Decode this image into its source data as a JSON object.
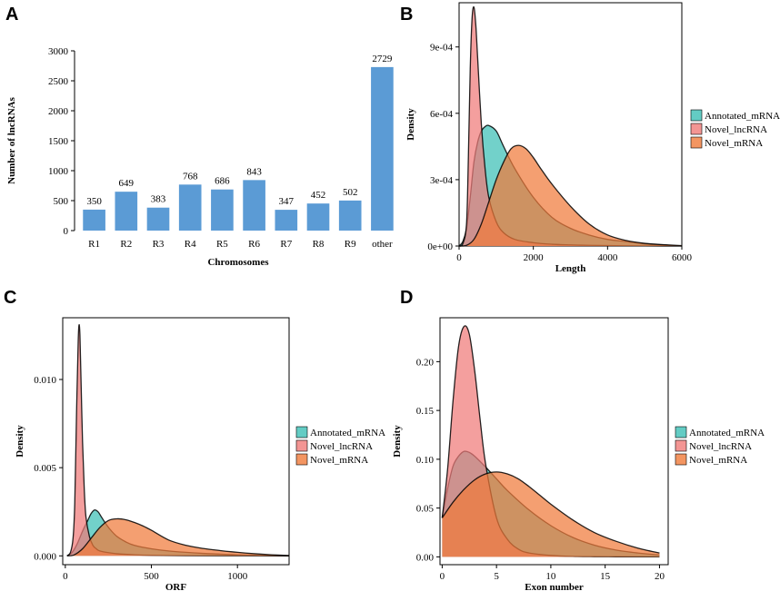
{
  "colors": {
    "bar": "#5b9bd5",
    "annotated": "#3cbfb5",
    "lnc": "#f07a78",
    "novel": "#f07a3a"
  },
  "chart_data": [
    {
      "panel": "A",
      "type": "bar",
      "xlabel": "Chromosomes",
      "ylabel": "Number of lncRNAs",
      "ylim": [
        0,
        3000
      ],
      "yticks": [
        0,
        500,
        1000,
        1500,
        2000,
        2500,
        3000
      ],
      "categories": [
        "R1",
        "R2",
        "R3",
        "R4",
        "R5",
        "R6",
        "R7",
        "R8",
        "R9",
        "other"
      ],
      "values": [
        350,
        649,
        383,
        768,
        686,
        843,
        347,
        452,
        502,
        2729
      ]
    },
    {
      "panel": "B",
      "type": "area",
      "xlabel": "Length",
      "ylabel": "Density",
      "xlim": [
        0,
        6000
      ],
      "ylim": [
        0,
        0.0011
      ],
      "xticks": [
        0,
        2000,
        4000,
        6000
      ],
      "xtick_labels": [
        "0",
        "2000",
        "4000",
        "6000"
      ],
      "yticks": [
        0,
        0.0003,
        0.0006,
        0.0009
      ],
      "ytick_labels": [
        "0e+00",
        "3e-04",
        "6e-04",
        "9e-04"
      ],
      "legend": [
        "Annotated_mRNA",
        "Novel_lncRNA",
        "Novel_mRNA"
      ],
      "series": [
        {
          "name": "Annotated_mRNA",
          "x": [
            0,
            100,
            200,
            300,
            400,
            500,
            600,
            700,
            800,
            1000,
            1200,
            1500,
            2000,
            2500,
            3000,
            3500,
            4000,
            4500,
            5000,
            5500,
            6000
          ],
          "y": [
            0,
            2e-05,
            8e-05,
            0.00022,
            0.00038,
            0.00047,
            0.00052,
            0.00054,
            0.000545,
            0.00052,
            0.00045,
            0.00035,
            0.00022,
            0.00013,
            8e-05,
            5e-05,
            3e-05,
            2e-05,
            1e-05,
            5e-06,
            0
          ]
        },
        {
          "name": "Novel_lncRNA",
          "x": [
            0,
            100,
            200,
            250,
            300,
            350,
            400,
            450,
            500,
            600,
            700,
            800,
            1000,
            1200,
            1500,
            2000,
            2500,
            3000,
            3500,
            4000,
            4500,
            5000,
            6000
          ],
          "y": [
            0,
            1e-05,
            0.0001,
            0.0004,
            0.0008,
            0.00103,
            0.00108,
            0.001,
            0.00085,
            0.00055,
            0.00035,
            0.00022,
            0.00011,
            6e-05,
            3e-05,
            1.5e-05,
            8e-06,
            5e-06,
            3e-06,
            2e-06,
            1e-06,
            5e-07,
            0
          ]
        },
        {
          "name": "Novel_mRNA",
          "x": [
            0,
            200,
            400,
            600,
            800,
            1000,
            1200,
            1400,
            1600,
            1800,
            2000,
            2200,
            2500,
            3000,
            3500,
            4000,
            4500,
            5000,
            5500,
            6000
          ],
          "y": [
            0,
            3e-06,
            3e-05,
            0.0001,
            0.0002,
            0.0003,
            0.00038,
            0.00044,
            0.000455,
            0.00044,
            0.0004,
            0.00035,
            0.00028,
            0.00018,
            0.0001,
            5e-05,
            2.5e-05,
            1.2e-05,
            6e-06,
            2e-06
          ]
        }
      ]
    },
    {
      "panel": "C",
      "type": "area",
      "xlabel": "ORF",
      "ylabel": "Density",
      "xlim": [
        -15,
        1300
      ],
      "ylim": [
        -0.0005,
        0.0135
      ],
      "xticks": [
        0,
        500,
        1000
      ],
      "xtick_labels": [
        "0",
        "500",
        "1000"
      ],
      "yticks": [
        0,
        0.005,
        0.01
      ],
      "ytick_labels": [
        "0.000",
        "0.005",
        "0.010"
      ],
      "legend": [
        "Annotated_mRNA",
        "Novel_lncRNA",
        "Novel_mRNA"
      ],
      "series": [
        {
          "name": "Annotated_mRNA",
          "x": [
            10,
            40,
            70,
            100,
            130,
            150,
            170,
            190,
            210,
            230,
            260,
            300,
            350,
            400,
            500,
            600,
            700,
            800,
            900,
            1000,
            1100,
            1200,
            1300
          ],
          "y": [
            0,
            0.0002,
            0.0007,
            0.0014,
            0.002,
            0.0024,
            0.0026,
            0.0025,
            0.0022,
            0.0019,
            0.0015,
            0.0011,
            0.0008,
            0.0006,
            0.0004,
            0.00028,
            0.0002,
            0.00014,
            0.0001,
            6e-05,
            3e-05,
            1e-05,
            0
          ]
        },
        {
          "name": "Novel_lncRNA",
          "x": [
            10,
            30,
            45,
            55,
            65,
            75,
            80,
            85,
            90,
            100,
            110,
            120,
            140,
            160,
            180,
            200,
            250,
            300,
            400,
            500,
            700,
            900,
            1100,
            1300
          ],
          "y": [
            0,
            0.0002,
            0.001,
            0.003,
            0.008,
            0.0122,
            0.0131,
            0.0125,
            0.0105,
            0.0065,
            0.0038,
            0.0022,
            0.0011,
            0.0006,
            0.0004,
            0.00028,
            0.00018,
            0.00012,
            6e-05,
            3e-05,
            1e-05,
            5e-06,
            2e-06,
            0
          ]
        },
        {
          "name": "Novel_mRNA",
          "x": [
            10,
            50,
            100,
            150,
            200,
            250,
            300,
            350,
            400,
            450,
            500,
            600,
            700,
            800,
            900,
            1000,
            1100,
            1200,
            1300
          ],
          "y": [
            0,
            5e-05,
            0.0004,
            0.001,
            0.0016,
            0.002,
            0.0021,
            0.00205,
            0.0019,
            0.0017,
            0.00145,
            0.0009,
            0.0006,
            0.00042,
            0.0003,
            0.0002,
            0.00012,
            6e-05,
            2e-05
          ]
        }
      ]
    },
    {
      "panel": "D",
      "type": "area",
      "xlabel": "Exon number",
      "ylabel": "Density",
      "xlim": [
        -0.2,
        20.8
      ],
      "ylim": [
        -0.008,
        0.245
      ],
      "xticks": [
        0,
        5,
        10,
        15,
        20
      ],
      "xtick_labels": [
        "0",
        "5",
        "10",
        "15",
        "20"
      ],
      "yticks": [
        0,
        0.05,
        0.1,
        0.15,
        0.2
      ],
      "ytick_labels": [
        "0.00",
        "0.05",
        "0.10",
        "0.15",
        "0.20"
      ],
      "legend": [
        "Annotated_mRNA",
        "Novel_lncRNA",
        "Novel_mRNA"
      ],
      "series": [
        {
          "name": "Annotated_mRNA",
          "x": [
            0,
            0.5,
            1,
            1.5,
            2,
            2.5,
            3,
            4,
            5,
            6,
            8,
            10,
            12,
            14,
            16,
            18,
            20
          ],
          "y": [
            0.04,
            0.07,
            0.093,
            0.103,
            0.108,
            0.107,
            0.103,
            0.092,
            0.08,
            0.068,
            0.048,
            0.032,
            0.02,
            0.012,
            0.007,
            0.004,
            0.002
          ]
        },
        {
          "name": "Novel_lncRNA",
          "x": [
            0,
            0.5,
            1,
            1.5,
            2,
            2.5,
            3,
            3.5,
            4,
            5,
            6,
            7,
            8,
            10,
            12,
            14,
            16,
            18,
            20
          ],
          "y": [
            0.04,
            0.09,
            0.16,
            0.215,
            0.236,
            0.228,
            0.19,
            0.14,
            0.095,
            0.04,
            0.018,
            0.008,
            0.004,
            0.0015,
            0.0005,
            0.0002,
            0.0001,
            5e-05,
            0
          ]
        },
        {
          "name": "Novel_mRNA",
          "x": [
            0,
            1,
            2,
            3,
            4,
            5,
            6,
            7,
            8,
            9,
            10,
            12,
            14,
            16,
            18,
            20
          ],
          "y": [
            0.04,
            0.056,
            0.069,
            0.079,
            0.085,
            0.087,
            0.085,
            0.08,
            0.072,
            0.063,
            0.054,
            0.038,
            0.025,
            0.016,
            0.009,
            0.004
          ]
        }
      ]
    }
  ]
}
